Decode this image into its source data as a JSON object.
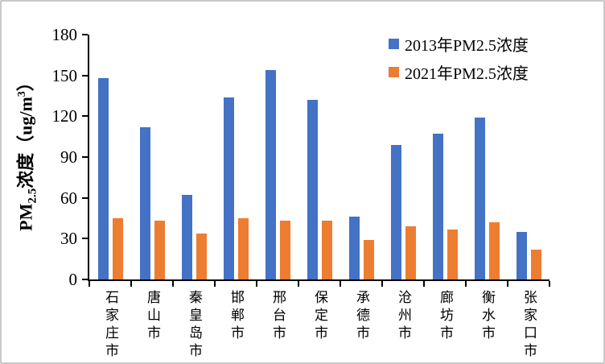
{
  "y_axis": {
    "title_prefix": "PM",
    "title_sub": "2.5",
    "title_mid": "浓度（ug/m",
    "title_sup": "3",
    "title_suffix": "）"
  },
  "chart_data": {
    "type": "bar",
    "title": "",
    "xlabel": "",
    "ylabel": "PM2.5浓度（ug/m3）",
    "ylim": [
      0,
      180
    ],
    "ytick_step": 30,
    "grid": false,
    "legend_position": "top-right",
    "categories": [
      "石家庄市",
      "唐山市",
      "秦皇岛市",
      "邯郸市",
      "邢台市",
      "保定市",
      "承德市",
      "沧州市",
      "廊坊市",
      "衡水市",
      "张家口市"
    ],
    "series": [
      {
        "name": "2013年PM2.5浓度",
        "color": "#4472C4",
        "values": [
          148,
          112,
          62,
          134,
          154,
          132,
          46,
          99,
          107,
          119,
          35
        ]
      },
      {
        "name": "2021年PM2.5浓度",
        "color": "#ED7D31",
        "values": [
          45,
          43,
          34,
          45,
          43,
          43,
          29,
          39,
          37,
          42,
          22
        ]
      }
    ]
  }
}
